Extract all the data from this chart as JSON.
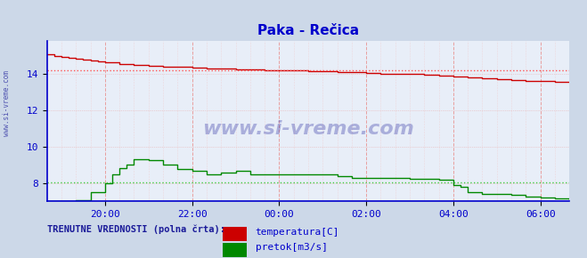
{
  "title": "Paka - Rečica",
  "title_color": "#0000cc",
  "bg_color": "#ccd8e8",
  "plot_bg_color": "#e8eef8",
  "ylabel_color": "#0000aa",
  "watermark": "www.si-vreme.com",
  "xlim": [
    0,
    720
  ],
  "ylim": [
    7.0,
    15.8
  ],
  "yticks": [
    8,
    10,
    12,
    14
  ],
  "temp_avg_line": 14.2,
  "flow_avg_line": 8.05,
  "temp_color": "#cc0000",
  "flow_color": "#008800",
  "avg_temp_color": "#ff5555",
  "avg_flow_color": "#44cc44",
  "legend_label_temp": "temperatura[C]",
  "legend_label_flow": "pretok[m3/s]",
  "legend_title": "TRENUTNE VREDNOSTI (polna črta):",
  "axis_color": "#0000cc",
  "tick_label_color": "#0000cc",
  "watermark_color": "#1a1a99",
  "watermark_alpha": 0.3,
  "sidebar_text": "www.si-vreme.com",
  "figsize": [
    6.59,
    2.9
  ],
  "dpi": 100,
  "xtick_positions": [
    80,
    200,
    320,
    440,
    560,
    680
  ],
  "xtick_labels": [
    "20:00",
    "22:00",
    "00:00",
    "02:00",
    "04:00",
    "06:00"
  ],
  "temp_data_t": [
    0,
    10,
    20,
    30,
    40,
    50,
    60,
    70,
    80,
    100,
    120,
    140,
    160,
    180,
    200,
    220,
    240,
    260,
    280,
    300,
    320,
    340,
    360,
    380,
    400,
    420,
    440,
    460,
    480,
    500,
    520,
    540,
    560,
    580,
    600,
    620,
    640,
    660,
    680,
    700,
    720
  ],
  "temp_data_v": [
    15.1,
    15.0,
    14.95,
    14.9,
    14.85,
    14.8,
    14.75,
    14.7,
    14.65,
    14.55,
    14.5,
    14.45,
    14.4,
    14.4,
    14.35,
    14.3,
    14.3,
    14.25,
    14.25,
    14.2,
    14.2,
    14.2,
    14.15,
    14.15,
    14.1,
    14.1,
    14.05,
    14.0,
    14.0,
    14.0,
    13.95,
    13.9,
    13.85,
    13.8,
    13.75,
    13.7,
    13.65,
    13.6,
    13.6,
    13.58,
    13.55
  ],
  "flow_data_t": [
    0,
    20,
    40,
    60,
    80,
    90,
    100,
    110,
    120,
    140,
    160,
    180,
    200,
    220,
    240,
    260,
    280,
    300,
    320,
    340,
    360,
    380,
    400,
    420,
    440,
    460,
    480,
    500,
    520,
    540,
    560,
    570,
    580,
    600,
    620,
    640,
    660,
    680,
    700,
    720
  ],
  "flow_data_v": [
    7.0,
    7.0,
    7.05,
    7.5,
    8.0,
    8.5,
    8.8,
    9.0,
    9.3,
    9.25,
    9.0,
    8.75,
    8.65,
    8.5,
    8.6,
    8.65,
    8.5,
    8.5,
    8.5,
    8.5,
    8.5,
    8.5,
    8.4,
    8.3,
    8.3,
    8.3,
    8.3,
    8.25,
    8.25,
    8.2,
    7.9,
    7.8,
    7.5,
    7.4,
    7.4,
    7.35,
    7.25,
    7.2,
    7.15,
    7.1
  ]
}
